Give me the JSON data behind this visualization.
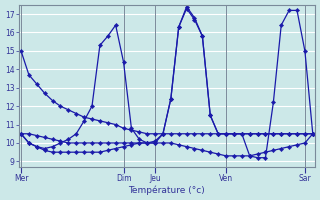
{
  "bg_color": "#cce8e8",
  "grid_color": "#ffffff",
  "line_color": "#1a1aaa",
  "xlabel": "Température (°c)",
  "ylabel_ticks": [
    9,
    10,
    11,
    12,
    13,
    14,
    15,
    16,
    17
  ],
  "ylim": [
    8.7,
    17.5
  ],
  "xlim": [
    -0.3,
    37.3
  ],
  "day_labels": [
    "Mer",
    "Dim",
    "Jeu",
    "Ven",
    "Sar"
  ],
  "day_x": [
    0,
    13,
    17,
    26,
    36
  ],
  "series": [
    {
      "x": [
        0,
        1,
        2,
        3,
        4,
        5,
        6,
        7,
        8,
        9,
        10,
        11,
        12,
        13,
        14,
        15,
        16,
        17,
        18,
        19,
        20,
        21,
        22,
        23,
        24,
        25,
        26,
        27,
        28,
        29,
        30,
        31,
        32,
        33,
        34,
        35,
        36,
        37
      ],
      "y": [
        15.0,
        13.7,
        13.2,
        12.7,
        12.3,
        12.0,
        11.8,
        11.6,
        11.4,
        11.3,
        11.2,
        11.1,
        11.0,
        10.8,
        10.7,
        10.6,
        10.5,
        10.5,
        10.5,
        10.5,
        10.5,
        10.5,
        10.5,
        10.5,
        10.5,
        10.5,
        10.5,
        10.5,
        10.5,
        10.5,
        10.5,
        10.5,
        10.5,
        10.5,
        10.5,
        10.5,
        10.5,
        10.5
      ]
    },
    {
      "x": [
        0,
        1,
        2,
        3,
        4,
        5,
        6,
        7,
        8,
        9,
        10,
        11,
        12,
        13,
        14,
        15,
        16,
        17,
        18,
        19,
        20,
        21,
        22,
        23,
        24,
        25,
        26,
        27,
        28,
        29,
        30,
        31,
        32,
        33,
        34,
        35,
        36,
        37
      ],
      "y": [
        10.5,
        10.0,
        9.8,
        9.7,
        9.8,
        10.0,
        10.2,
        10.5,
        11.2,
        12.0,
        15.3,
        15.8,
        16.4,
        14.4,
        10.8,
        10.2,
        10.0,
        10.1,
        10.5,
        12.4,
        16.3,
        17.4,
        16.8,
        15.8,
        11.5,
        10.5,
        10.5,
        10.5,
        10.5,
        10.5,
        10.5,
        10.5,
        10.5,
        10.5,
        10.5,
        10.5,
        10.5,
        10.5
      ]
    },
    {
      "x": [
        0,
        1,
        2,
        3,
        4,
        5,
        6,
        7,
        8,
        9,
        10,
        11,
        12,
        13,
        14,
        15,
        16,
        17,
        18,
        19,
        20,
        21,
        22,
        23,
        24,
        25,
        26,
        27,
        28,
        29,
        30,
        31,
        32,
        33,
        34,
        35,
        36,
        37
      ],
      "y": [
        10.5,
        10.5,
        10.4,
        10.3,
        10.2,
        10.1,
        10.0,
        10.0,
        10.0,
        10.0,
        10.0,
        10.0,
        10.0,
        10.0,
        10.0,
        10.0,
        10.0,
        10.0,
        10.0,
        10.0,
        9.9,
        9.8,
        9.7,
        9.6,
        9.5,
        9.4,
        9.3,
        9.3,
        9.3,
        9.3,
        9.4,
        9.5,
        9.6,
        9.7,
        9.8,
        9.9,
        10.0,
        10.5
      ]
    },
    {
      "x": [
        0,
        1,
        2,
        3,
        4,
        5,
        6,
        7,
        8,
        9,
        10,
        11,
        12,
        13,
        14,
        15,
        16,
        17,
        18,
        19,
        20,
        21,
        22,
        23,
        24,
        25,
        26,
        27,
        28,
        29,
        30,
        31,
        32,
        33,
        34,
        35,
        36,
        37
      ],
      "y": [
        10.5,
        10.0,
        9.8,
        9.6,
        9.5,
        9.5,
        9.5,
        9.5,
        9.5,
        9.5,
        9.5,
        9.6,
        9.7,
        9.8,
        9.9,
        10.0,
        10.0,
        10.0,
        10.5,
        12.4,
        16.3,
        17.3,
        16.7,
        15.8,
        11.5,
        10.5,
        10.5,
        10.5,
        10.5,
        9.3,
        9.2,
        9.2,
        12.2,
        16.4,
        17.2,
        17.2,
        15.0,
        10.5
      ]
    }
  ]
}
